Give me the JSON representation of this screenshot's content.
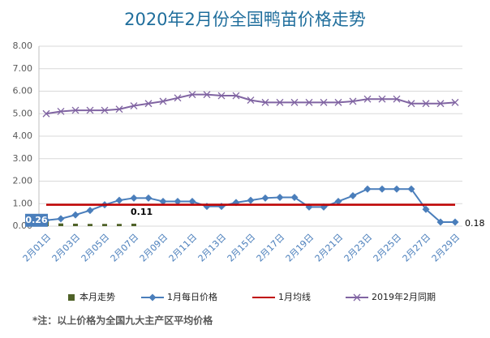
{
  "chart_data": {
    "type": "line",
    "title": "2020年2月份全国鸭苗价格走势",
    "footnote": "*注：以上价格为全国九大主产区平均价格",
    "categories": [
      "2月01日",
      null,
      "2月03日",
      null,
      "2月05日",
      null,
      "2月07日",
      null,
      "2月09日",
      null,
      "2月11日",
      null,
      "2月13日",
      null,
      "2月15日",
      null,
      "2月17日",
      null,
      "2月19日",
      null,
      "2月21日",
      null,
      "2月23日",
      null,
      "2月25日",
      null,
      "2月27日",
      null,
      "2月29日"
    ],
    "ylim": [
      0,
      8
    ],
    "yticks": [
      {
        "value": 0,
        "label": "0.00"
      },
      {
        "value": 1,
        "label": "1.00"
      },
      {
        "value": 2,
        "label": "2.00"
      },
      {
        "value": 3,
        "label": "3.00"
      },
      {
        "value": 4,
        "label": "4.00"
      },
      {
        "value": 5,
        "label": "5.00"
      },
      {
        "value": 6,
        "label": "6.00"
      },
      {
        "value": 7,
        "label": "7.00"
      },
      {
        "value": 8,
        "label": "8.00"
      }
    ],
    "grid": true,
    "legend": "bottom",
    "series": [
      {
        "name": "本月走势",
        "type": "bar",
        "color": "#4f6228",
        "values": [
          0.26,
          0.12,
          0.11,
          0.1,
          0.1,
          0.1,
          0.11,
          null,
          null,
          null,
          null,
          null,
          null,
          null,
          null,
          null,
          null,
          null,
          null,
          null,
          null,
          null,
          null,
          null,
          null,
          null,
          null,
          null,
          null
        ],
        "value_labels": [
          null,
          null,
          null,
          null,
          null,
          null,
          "0.11",
          null,
          null,
          null,
          null,
          null,
          null,
          null,
          null,
          null,
          null,
          null,
          null,
          null,
          null,
          null,
          null,
          null,
          null,
          null,
          null,
          null,
          null
        ]
      },
      {
        "name": "1月每日价格",
        "type": "line",
        "marker": "diamond",
        "color": "#4a7ebb",
        "values": [
          0.26,
          0.33,
          0.5,
          0.7,
          0.95,
          1.15,
          1.25,
          1.25,
          1.1,
          1.1,
          1.1,
          0.88,
          0.88,
          1.05,
          1.15,
          1.25,
          1.28,
          1.28,
          0.85,
          0.85,
          1.1,
          1.35,
          1.65,
          1.65,
          1.65,
          1.65,
          0.75,
          0.18,
          0.18
        ],
        "value_labels": [
          "0.26",
          null,
          null,
          null,
          null,
          null,
          null,
          null,
          null,
          null,
          null,
          null,
          null,
          null,
          null,
          null,
          null,
          null,
          null,
          null,
          null,
          null,
          null,
          null,
          null,
          null,
          null,
          null,
          "0.18"
        ]
      },
      {
        "name": "1月均线",
        "type": "line",
        "marker": "none",
        "color": "#c00000",
        "values": [
          0.95,
          0.95,
          0.95,
          0.95,
          0.95,
          0.95,
          0.95,
          0.95,
          0.95,
          0.95,
          0.95,
          0.95,
          0.95,
          0.95,
          0.95,
          0.95,
          0.95,
          0.95,
          0.95,
          0.95,
          0.95,
          0.95,
          0.95,
          0.95,
          0.95,
          0.95,
          0.95,
          0.95,
          0.95
        ]
      },
      {
        "name": "2019年2月同期",
        "type": "line",
        "marker": "x",
        "color": "#8064a2",
        "values": [
          5.0,
          5.1,
          5.15,
          5.15,
          5.15,
          5.2,
          5.35,
          5.45,
          5.55,
          5.7,
          5.85,
          5.85,
          5.8,
          5.8,
          5.6,
          5.5,
          5.5,
          5.5,
          5.5,
          5.5,
          5.5,
          5.55,
          5.65,
          5.65,
          5.65,
          5.45,
          5.45,
          5.45,
          5.5
        ]
      }
    ]
  }
}
